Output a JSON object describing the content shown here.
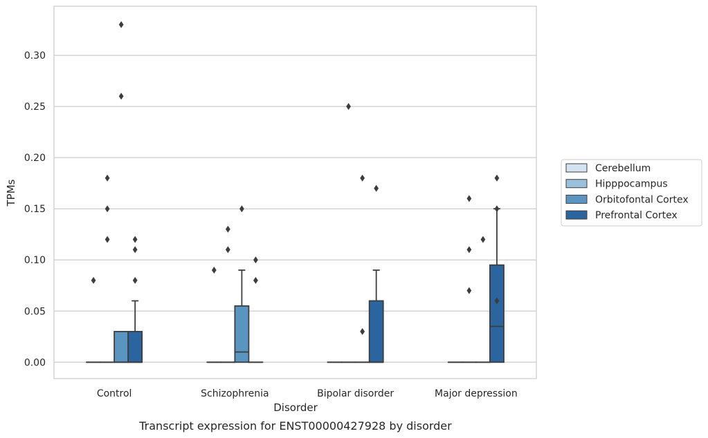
{
  "chart_data": {
    "type": "box",
    "caption": "Transcript expression for ENST00000427928 by disorder",
    "xlabel": "Disorder",
    "ylabel": "TPMs",
    "ylim": [
      -0.016,
      0.348
    ],
    "yticks": [
      0.0,
      0.05,
      0.1,
      0.15,
      0.2,
      0.25,
      0.3
    ],
    "ytick_labels": [
      "0.00",
      "0.05",
      "0.10",
      "0.15",
      "0.20",
      "0.25",
      "0.30"
    ],
    "grid": "horizontal",
    "legend_position": "right",
    "categories": [
      "Control",
      "Schizophrenia",
      "Bipolar disorder",
      "Major depression"
    ],
    "series": [
      {
        "name": "Cerebellum",
        "color": "#d4e3f1",
        "boxes": [
          {
            "q1": 0,
            "median": 0,
            "q3": 0,
            "whisker_low": 0,
            "whisker_high": 0,
            "outliers": [
              0.08
            ]
          },
          {
            "q1": 0,
            "median": 0,
            "q3": 0,
            "whisker_low": 0,
            "whisker_high": 0,
            "outliers": [
              0.09
            ]
          },
          {
            "q1": 0,
            "median": 0,
            "q3": 0,
            "whisker_low": 0,
            "whisker_high": 0,
            "outliers": []
          },
          {
            "q1": 0,
            "median": 0,
            "q3": 0,
            "whisker_low": 0,
            "whisker_high": 0,
            "outliers": []
          }
        ]
      },
      {
        "name": "Hipppocampus",
        "color": "#9ac0dc",
        "boxes": [
          {
            "q1": 0,
            "median": 0,
            "q3": 0,
            "whisker_low": 0,
            "whisker_high": 0,
            "outliers": [
              0.12,
              0.15,
              0.18
            ]
          },
          {
            "q1": 0,
            "median": 0,
            "q3": 0,
            "whisker_low": 0,
            "whisker_high": 0,
            "outliers": [
              0.11,
              0.13
            ]
          },
          {
            "q1": 0,
            "median": 0,
            "q3": 0,
            "whisker_low": 0,
            "whisker_high": 0,
            "outliers": [
              0.25
            ]
          },
          {
            "q1": 0,
            "median": 0,
            "q3": 0,
            "whisker_low": 0,
            "whisker_high": 0,
            "outliers": [
              0.07,
              0.11,
              0.16
            ]
          }
        ]
      },
      {
        "name": "Orbitofontal Cortex",
        "color": "#5a95c1",
        "boxes": [
          {
            "q1": 0,
            "median": 0,
            "q3": 0.03,
            "whisker_low": 0,
            "whisker_high": 0.03,
            "outliers": [
              0.26,
              0.33
            ]
          },
          {
            "q1": 0,
            "median": 0.01,
            "q3": 0.055,
            "whisker_low": 0,
            "whisker_high": 0.09,
            "outliers": [
              0.15
            ]
          },
          {
            "q1": 0,
            "median": 0,
            "q3": 0,
            "whisker_low": 0,
            "whisker_high": 0,
            "outliers": [
              0.03,
              0.18
            ]
          },
          {
            "q1": 0,
            "median": 0,
            "q3": 0,
            "whisker_low": 0,
            "whisker_high": 0,
            "outliers": [
              0.12
            ]
          }
        ]
      },
      {
        "name": "Prefrontal Cortex",
        "color": "#2a65a0",
        "boxes": [
          {
            "q1": 0,
            "median": 0,
            "q3": 0.03,
            "whisker_low": 0,
            "whisker_high": 0.06,
            "outliers": [
              0.08,
              0.11,
              0.12
            ]
          },
          {
            "q1": 0,
            "median": 0,
            "q3": 0,
            "whisker_low": 0,
            "whisker_high": 0,
            "outliers": [
              0.08,
              0.1
            ]
          },
          {
            "q1": 0,
            "median": 0,
            "q3": 0.06,
            "whisker_low": 0,
            "whisker_high": 0.09,
            "outliers": [
              0.17
            ]
          },
          {
            "q1": 0,
            "median": 0.035,
            "q3": 0.095,
            "whisker_low": 0,
            "whisker_high": 0.15,
            "outliers": [
              0.06,
              0.15,
              0.18
            ]
          }
        ]
      }
    ]
  }
}
